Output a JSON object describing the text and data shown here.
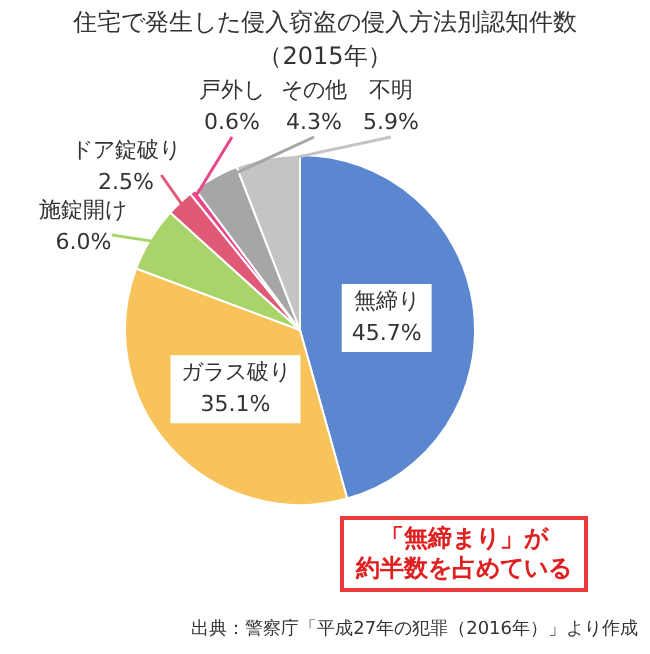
{
  "chart_data": {
    "type": "pie",
    "title": "住宅で発生した侵入窃盗の侵入方法別認知件数",
    "subtitle": "（2015年）",
    "categories": [
      "無締り",
      "ガラス破り",
      "施錠開け",
      "ドア錠破り",
      "戸外し",
      "その他",
      "不明"
    ],
    "values": [
      45.7,
      35.1,
      6.0,
      2.5,
      0.6,
      4.3,
      5.9
    ],
    "value_labels": [
      "45.7%",
      "35.1%",
      "6.0%",
      "2.5%",
      "0.6%",
      "4.3%",
      "5.9%"
    ],
    "colors": [
      "#5b86d0",
      "#f7c35a",
      "#a8d46a",
      "#e05a78",
      "#e8478a",
      "#a6a6a6",
      "#c4c4c4"
    ],
    "legend": false,
    "annotations": [
      "「無締まり」が",
      "約半数を占めている",
      "出典：警察庁「平成27年の犯罪（2016年）」より作成"
    ]
  }
}
